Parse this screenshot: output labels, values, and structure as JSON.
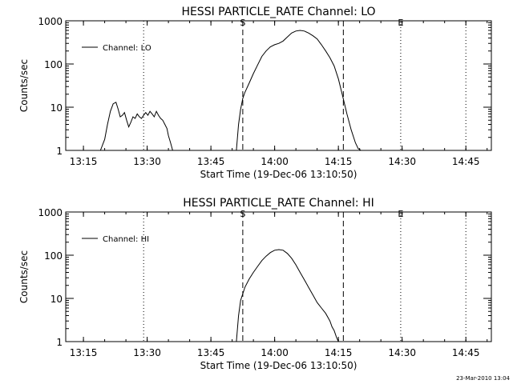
{
  "timestamp": "23-Mar-2010 13:04",
  "chart_data": [
    {
      "type": "line",
      "title": "HESSI PARTICLE_RATE Channel: LO",
      "xlabel": "Start Time (19-Dec-06 13:10:50)",
      "ylabel": "Counts/sec",
      "yscale": "log",
      "ylim": [
        1,
        1000
      ],
      "xlim": [
        "13:10:50",
        "14:51:00"
      ],
      "x_ticks": [
        "13:15",
        "13:30",
        "13:45",
        "14:00",
        "14:15",
        "14:30",
        "14:45"
      ],
      "y_ticks": [
        "1",
        "10",
        "100",
        "1000"
      ],
      "legend": "top-left",
      "grid": false,
      "markers": [
        {
          "label": "S",
          "time": "13:52:30",
          "style": "dashed"
        },
        {
          "label": "",
          "time": "14:16:10",
          "style": "dashed"
        },
        {
          "label": "",
          "time": "13:29:10",
          "style": "dotted"
        },
        {
          "label": "E",
          "time": "14:29:40",
          "style": "dotted"
        },
        {
          "label": "",
          "time": "14:45:00",
          "style": "dotted"
        }
      ],
      "series": [
        {
          "name": "Channel: LO",
          "x": [
            "13:18:00",
            "13:19:00",
            "13:20:00",
            "13:20:40",
            "13:21:20",
            "13:22:00",
            "13:22:40",
            "13:23:10",
            "13:23:40",
            "13:24:10",
            "13:24:40",
            "13:25:10",
            "13:25:40",
            "13:26:10",
            "13:26:40",
            "13:27:10",
            "13:27:40",
            "13:28:10",
            "13:28:40",
            "13:29:10",
            "13:29:40",
            "13:30:10",
            "13:30:40",
            "13:31:10",
            "13:31:40",
            "13:32:10",
            "13:32:40",
            "13:33:10",
            "13:33:40",
            "13:34:10",
            "13:34:40",
            "13:35:00",
            "13:35:30",
            "13:36:00",
            "13:37:00"
          ],
          "y": [
            1,
            1,
            1.8,
            4,
            8,
            12,
            13,
            9,
            6,
            6.5,
            7.5,
            5,
            3.5,
            4.5,
            6,
            5.5,
            7,
            6,
            5.5,
            6.5,
            7.5,
            6.5,
            8,
            7,
            6,
            8,
            6.5,
            5.5,
            5,
            4,
            3.2,
            2.2,
            1.5,
            1,
            1
          ]
        },
        {
          "name": "",
          "x": [
            "13:51:00",
            "13:51:30",
            "13:52:00",
            "13:52:30",
            "13:53:00",
            "13:54:00",
            "13:55:00",
            "13:56:00",
            "13:57:00",
            "13:58:00",
            "13:59:00",
            "14:00:00",
            "14:01:00",
            "14:02:00",
            "14:03:00",
            "14:04:00",
            "14:05:00",
            "14:06:00",
            "14:07:00",
            "14:08:00",
            "14:09:00",
            "14:10:00",
            "14:11:00",
            "14:12:00",
            "14:13:00",
            "14:14:00",
            "14:15:00",
            "14:16:00",
            "14:17:00",
            "14:18:00",
            "14:19:00",
            "14:19:40",
            "14:20:20"
          ],
          "y": [
            1,
            4,
            9,
            16,
            22,
            36,
            60,
            95,
            150,
            200,
            250,
            280,
            300,
            340,
            420,
            520,
            580,
            600,
            580,
            520,
            450,
            380,
            280,
            200,
            140,
            90,
            45,
            18,
            7,
            3,
            1.5,
            1.1,
            1
          ]
        }
      ]
    },
    {
      "type": "line",
      "title": "HESSI PARTICLE_RATE Channel: HI",
      "xlabel": "Start Time (19-Dec-06 13:10:50)",
      "ylabel": "Counts/sec",
      "yscale": "log",
      "ylim": [
        1,
        1000
      ],
      "xlim": [
        "13:10:50",
        "14:51:00"
      ],
      "x_ticks": [
        "13:15",
        "13:30",
        "13:45",
        "14:00",
        "14:15",
        "14:30",
        "14:45"
      ],
      "y_ticks": [
        "1",
        "10",
        "100",
        "1000"
      ],
      "legend": "top-left",
      "grid": false,
      "markers": [
        {
          "label": "S",
          "time": "13:52:30",
          "style": "dashed"
        },
        {
          "label": "",
          "time": "14:16:10",
          "style": "dashed"
        },
        {
          "label": "",
          "time": "13:29:10",
          "style": "dotted"
        },
        {
          "label": "E",
          "time": "14:29:40",
          "style": "dotted"
        },
        {
          "label": "",
          "time": "14:45:00",
          "style": "dotted"
        }
      ],
      "series": [
        {
          "name": "Channel: HI",
          "x": [
            "13:51:00",
            "13:51:30",
            "13:52:00",
            "13:53:00",
            "13:54:00",
            "13:55:00",
            "13:56:00",
            "13:57:00",
            "13:58:00",
            "13:59:00",
            "14:00:00",
            "14:01:00",
            "14:02:00",
            "14:03:00",
            "14:04:00",
            "14:05:00",
            "14:06:00",
            "14:07:00",
            "14:08:00",
            "14:09:00",
            "14:10:00",
            "14:11:00",
            "14:12:00",
            "14:13:00",
            "14:13:30",
            "14:14:00",
            "14:14:30",
            "14:15:00"
          ],
          "y": [
            1,
            4,
            9,
            18,
            28,
            40,
            55,
            75,
            95,
            115,
            130,
            135,
            130,
            110,
            85,
            60,
            40,
            27,
            18,
            12,
            8,
            6,
            4.5,
            3,
            2.2,
            1.8,
            1.3,
            1
          ]
        }
      ]
    }
  ]
}
